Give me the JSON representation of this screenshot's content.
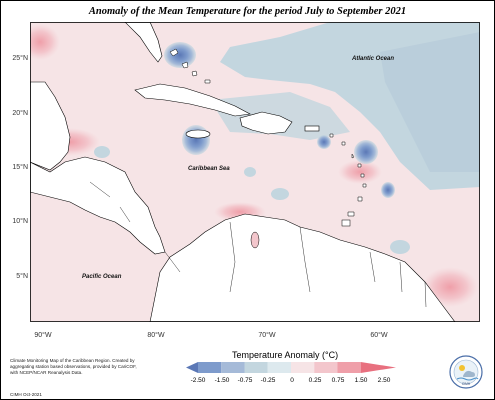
{
  "title": "Anomaly of the Mean Temperature for the period July to September 2021",
  "map": {
    "lat_labels": [
      "25°N",
      "20°N",
      "15°N",
      "10°N",
      "5°N"
    ],
    "lon_labels": [
      "90°W",
      "80°W",
      "70°W",
      "60°W"
    ],
    "place_labels": {
      "atlantic": "Atlantic Ocean",
      "caribbean": "Caribbean Sea",
      "pacific": "Pacific Ocean"
    }
  },
  "legend": {
    "title": "Temperature Anomaly (°C)",
    "ticks": [
      "-2.50",
      "-1.50",
      "-0.75",
      "-0.25",
      "0",
      "0.25",
      "0.75",
      "1.50",
      "2.50"
    ],
    "colors": [
      "#5b78b6",
      "#7e9bcc",
      "#a5bad8",
      "#c3d6df",
      "#dde9ee",
      "#f6e4e6",
      "#f3c6cc",
      "#ef9fa9",
      "#e8707f"
    ]
  },
  "credit": {
    "text": "Climate Monitoring Map of the Caribbean Region. Created by aggregating station based observations, provided by CariCOF, with NCEP/NCAR Reanalysis Data.",
    "date": "CIMH Oct-2021"
  },
  "logo": {
    "label": "CIMH"
  }
}
